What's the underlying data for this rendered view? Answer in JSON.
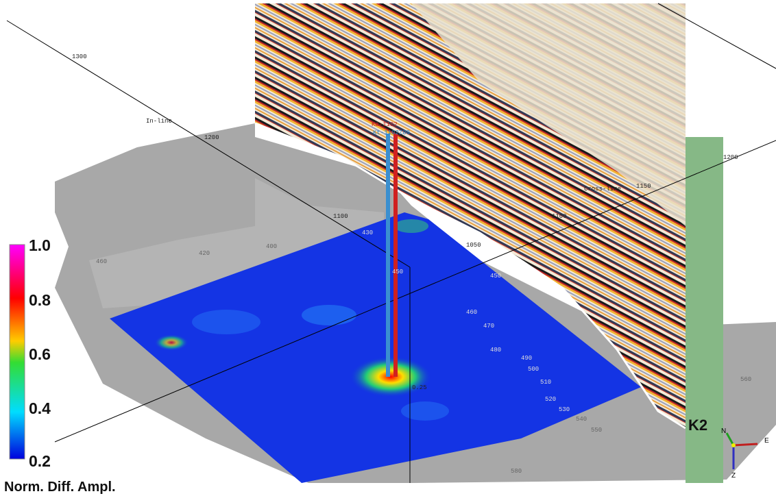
{
  "axes": {
    "inline_label": "In-line",
    "crossline_label": "Cross-line",
    "inline_ticks": [
      "1300",
      "1200",
      "1100"
    ],
    "crossline_ticks": [
      "1200",
      "1150",
      "1100",
      "1050"
    ]
  },
  "wells": [
    "Ka-1102",
    "Kt-1102Z00"
  ],
  "horizon_name": "K2",
  "compass": {
    "north": "N",
    "east": "E",
    "down": "Z"
  },
  "contours": [
    "450",
    "460",
    "470",
    "480",
    "490",
    "500",
    "510",
    "520",
    "530",
    "540",
    "550",
    "560",
    "580",
    "430",
    "420",
    "400",
    "460",
    "450",
    "0.25"
  ],
  "colorbar": {
    "title": "Norm. Diff. Ampl.",
    "ticks": [
      "1.0",
      "0.8",
      "0.6",
      "0.4",
      "0.2"
    ]
  }
}
